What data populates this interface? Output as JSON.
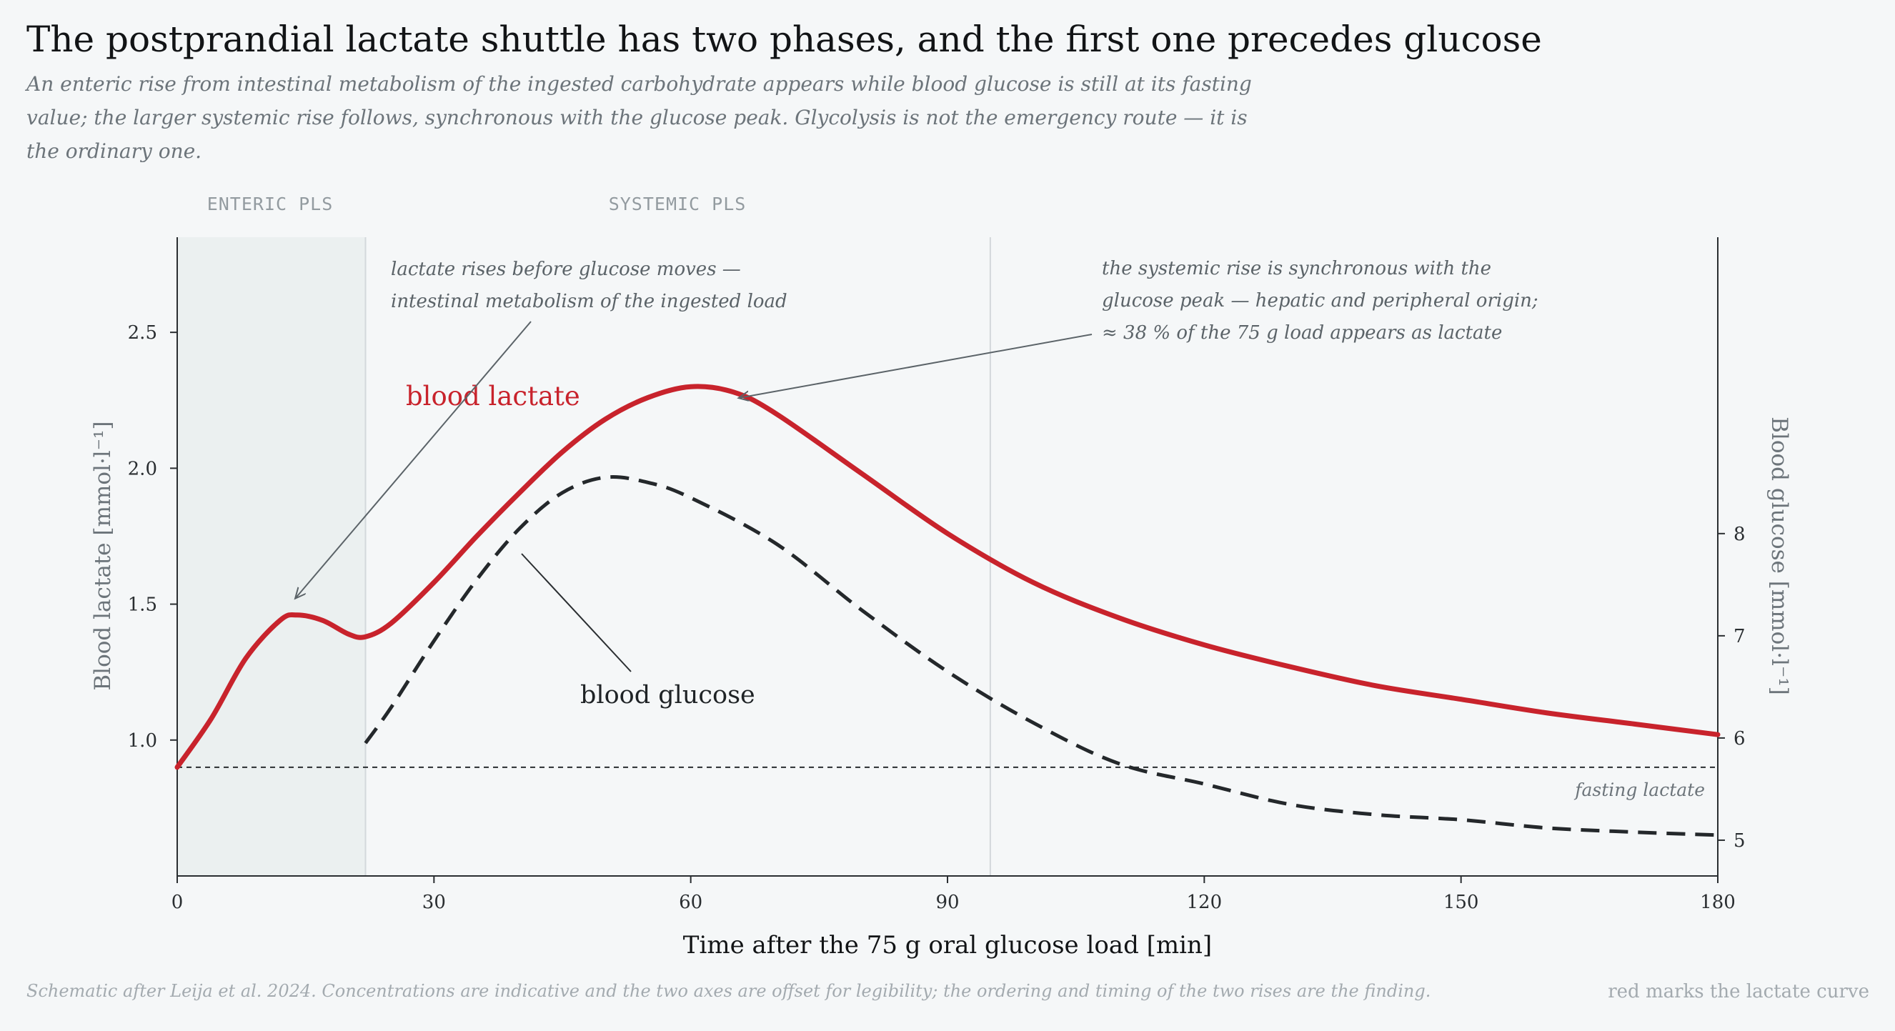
{
  "title": "The postprandial lactate shuttle has two phases, and the first one precedes glucose",
  "subtitle": "An enteric rise from intestinal metabolism of the ingested carbohydrate appears while blood glucose is still at its fasting value; the larger systemic rise follows, synchronous with the glucose peak. Glycolysis is not the emergency route — it is the ordinary one.",
  "footer": {
    "note": "Schematic after Leija et al. 2024. Concentrations are indicative and the two axes are offset for legibility; the ordering and timing of the two rises are the finding.",
    "right": "red marks the lactate curve"
  },
  "chart_data": {
    "type": "line",
    "xlabel": "Time after the 75 g oral glucose load  [min]",
    "ylabel": "Blood lactate  [mmol·l⁻¹]",
    "y2label": "Blood glucose  [mmol·l⁻¹]",
    "xlim": [
      0,
      180
    ],
    "ylim": [
      0.5,
      2.85
    ],
    "y2lim": [
      4.65,
      10.9
    ],
    "xticks": [
      0,
      30,
      60,
      90,
      120,
      150,
      180
    ],
    "yticks": [
      1.0,
      1.5,
      2.0,
      2.5
    ],
    "y2ticks": [
      5,
      6,
      7,
      8
    ],
    "grid": false,
    "phases": [
      {
        "label": "ENTERIC PLS",
        "x_range": [
          0,
          22
        ],
        "shaded": true
      },
      {
        "label": "SYSTEMIC PLS",
        "x_range": [
          22,
          95
        ],
        "shaded": false
      }
    ],
    "fasting_lactate": {
      "value": 0.9,
      "label": "fasting lactate"
    },
    "series": [
      {
        "name": "blood lactate",
        "axis": "left",
        "color": "#c8232c",
        "style": "solid",
        "x": [
          0,
          4,
          8,
          12,
          14,
          17,
          20,
          22,
          25,
          30,
          35,
          40,
          45,
          50,
          55,
          60,
          65,
          70,
          80,
          90,
          100,
          110,
          120,
          130,
          140,
          150,
          160,
          170,
          180
        ],
        "y": [
          0.9,
          1.08,
          1.3,
          1.44,
          1.46,
          1.44,
          1.39,
          1.38,
          1.43,
          1.58,
          1.75,
          1.91,
          2.06,
          2.18,
          2.26,
          2.3,
          2.28,
          2.2,
          1.98,
          1.76,
          1.58,
          1.45,
          1.35,
          1.27,
          1.2,
          1.15,
          1.1,
          1.06,
          1.02
        ]
      },
      {
        "name": "blood glucose",
        "axis": "right",
        "color": "#24282b",
        "style": "dashed",
        "x": [
          22,
          25,
          30,
          35,
          40,
          45,
          50,
          55,
          60,
          70,
          80,
          90,
          100,
          110,
          120,
          130,
          140,
          150,
          160,
          170,
          180
        ],
        "y": [
          5.95,
          6.3,
          6.95,
          7.55,
          8.05,
          8.4,
          8.55,
          8.5,
          8.35,
          7.9,
          7.25,
          6.65,
          6.15,
          5.75,
          5.55,
          5.35,
          5.25,
          5.2,
          5.12,
          5.08,
          5.05
        ]
      }
    ],
    "annotations": [
      {
        "text": [
          "lactate rises before glucose moves —",
          "intestinal metabolism of the ingested load"
        ],
        "points_to": [
          13.5,
          1.47
        ]
      },
      {
        "text": [
          "the systemic rise is synchronous with the",
          "glucose peak — hepatic and peripheral origin;",
          "≈ 38 % of the 75 g load appears as lactate"
        ],
        "points_to": [
          66,
          2.28
        ]
      }
    ]
  }
}
